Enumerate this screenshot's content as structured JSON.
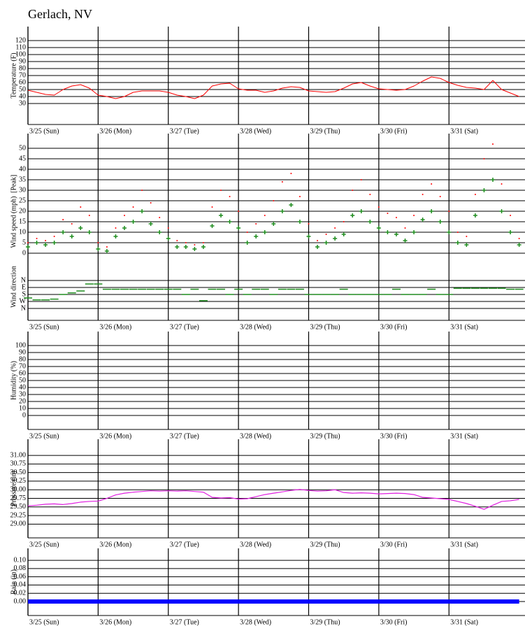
{
  "title": "Gerlach, NV",
  "chart_data": [
    {
      "type": "line",
      "ylabel": "Temperature (F)",
      "x": [
        0,
        3,
        6,
        9,
        12,
        15,
        18,
        21,
        24,
        27,
        30,
        33,
        36,
        39,
        42,
        45,
        48,
        51,
        54,
        57,
        60,
        63,
        66,
        69,
        72,
        75,
        78,
        81,
        84,
        87,
        90,
        93,
        96,
        99,
        102,
        105,
        108,
        111,
        114,
        117,
        120,
        123,
        126,
        129,
        132,
        135,
        138,
        141,
        144,
        147,
        150,
        153,
        156,
        159,
        162,
        165,
        168
      ],
      "xlim": [
        0,
        170
      ],
      "xticks": [
        {
          "value": 0,
          "label": "3/25 (Sun)"
        },
        {
          "value": 24,
          "label": "3/26 (Mon)"
        },
        {
          "value": 48,
          "label": "3/27 (Tue)"
        },
        {
          "value": 72,
          "label": "3/28 (Wed)"
        },
        {
          "value": 96,
          "label": "3/29 (Thu)"
        },
        {
          "value": 120,
          "label": "3/30 (Fri)"
        },
        {
          "value": 144,
          "label": "3/31 (Sat)"
        }
      ],
      "ylim": [
        0,
        140
      ],
      "yticks": [
        30,
        40,
        50,
        60,
        70,
        80,
        90,
        100,
        110,
        120
      ],
      "grid": true,
      "series": [
        {
          "color": "#ff0000",
          "marker": "none",
          "linewidth": 1,
          "values": [
            49,
            46,
            43,
            42,
            50,
            55,
            57,
            52,
            42,
            40,
            37,
            40,
            46,
            48,
            48,
            48,
            46,
            42,
            40,
            37,
            42,
            55,
            58,
            59,
            51,
            49,
            49,
            46,
            48,
            52,
            54,
            53,
            48,
            47,
            46,
            47,
            52,
            58,
            60,
            55,
            51,
            50,
            49,
            50,
            55,
            62,
            68,
            66,
            60,
            56,
            53,
            52,
            50,
            63,
            50,
            45,
            40
          ]
        }
      ]
    },
    {
      "type": "scatter",
      "ylabel": "Wind speed (mph)",
      "ylabel2": "[Peak]",
      "x": [
        0,
        3,
        6,
        9,
        12,
        15,
        18,
        21,
        24,
        27,
        30,
        33,
        36,
        39,
        42,
        45,
        48,
        51,
        54,
        57,
        60,
        63,
        66,
        69,
        72,
        75,
        78,
        81,
        84,
        87,
        90,
        93,
        96,
        99,
        102,
        105,
        108,
        111,
        114,
        117,
        120,
        123,
        126,
        129,
        132,
        135,
        138,
        141,
        144,
        147,
        150,
        153,
        156,
        159,
        162,
        165,
        168
      ],
      "xlim": [
        0,
        170
      ],
      "xticks": [
        0,
        24,
        48,
        72,
        96,
        120,
        144
      ],
      "ylim": [
        0,
        57
      ],
      "yticks": [
        0,
        5,
        10,
        15,
        20,
        25,
        30,
        35,
        40,
        45,
        50
      ],
      "grid": true,
      "series": [
        {
          "color": "#ff0000",
          "marker": "dot",
          "values": [
            5,
            7,
            6,
            8,
            16,
            14,
            22,
            18,
            5,
            3,
            12,
            18,
            22,
            30,
            24,
            17,
            12,
            6,
            5,
            4,
            5,
            22,
            30,
            27,
            20,
            10,
            14,
            18,
            25,
            34,
            38,
            27,
            14,
            6,
            9,
            12,
            15,
            30,
            35,
            28,
            22,
            19,
            17,
            12,
            18,
            28,
            33,
            27,
            20,
            10,
            8,
            28,
            45,
            52,
            33,
            18,
            7
          ]
        },
        {
          "color": "#1e8c1e",
          "marker": "cross",
          "values": [
            3,
            5,
            4,
            5,
            10,
            8,
            12,
            10,
            2,
            1,
            8,
            12,
            15,
            20,
            14,
            10,
            7,
            3,
            3,
            2,
            3,
            13,
            18,
            15,
            12,
            5,
            8,
            10,
            14,
            20,
            23,
            15,
            8,
            3,
            5,
            7,
            9,
            18,
            20,
            15,
            12,
            10,
            9,
            6,
            10,
            16,
            20,
            15,
            10,
            5,
            4,
            18,
            30,
            35,
            20,
            10,
            4
          ]
        }
      ]
    },
    {
      "type": "scatter",
      "ylabel": "Wind direction",
      "x": [
        0,
        3,
        6,
        9,
        12,
        15,
        18,
        21,
        24,
        27,
        30,
        33,
        36,
        39,
        42,
        45,
        48,
        51,
        54,
        57,
        60,
        63,
        66,
        69,
        72,
        75,
        78,
        81,
        84,
        87,
        90,
        93,
        96,
        99,
        102,
        105,
        108,
        111,
        114,
        117,
        120,
        123,
        126,
        129,
        132,
        135,
        138,
        141,
        144,
        147,
        150,
        153,
        156,
        159,
        162,
        165,
        168
      ],
      "xlim": [
        0,
        170
      ],
      "xticks": [
        {
          "value": 0,
          "label": "3/25 (Sun)"
        },
        {
          "value": 24,
          "label": "3/26 (Mon)"
        },
        {
          "value": 48,
          "label": "3/27 (Tue)"
        },
        {
          "value": 72,
          "label": "3/28 (Wed)"
        },
        {
          "value": 96,
          "label": "3/29 (Thu)"
        },
        {
          "value": 120,
          "label": "3/30 (Fri)"
        },
        {
          "value": 144,
          "label": "3/31 (Sat)"
        }
      ],
      "ylim": [
        513,
        -351
      ],
      "yticks": [
        {
          "value": 0,
          "label": "N"
        },
        {
          "value": 90,
          "label": "E"
        },
        {
          "value": 180,
          "label": "S"
        },
        {
          "value": 270,
          "label": "W"
        },
        {
          "value": 360,
          "label": "N"
        }
      ],
      "grid": true,
      "series": [
        {
          "color": "#1e8c1e",
          "marker": "dash",
          "values": [
            225,
            250,
            250,
            240,
            180,
            160,
            135,
            45,
            45,
            113,
            113,
            113,
            113,
            113,
            113,
            113,
            113,
            113,
            180,
            113,
            260,
            113,
            113,
            180,
            113,
            180,
            113,
            113,
            180,
            113,
            113,
            113,
            180,
            180,
            180,
            180,
            113,
            180,
            180,
            180,
            180,
            180,
            113,
            180,
            180,
            180,
            113,
            180,
            180,
            100,
            100,
            100,
            100,
            100,
            100,
            113,
            113
          ]
        }
      ]
    },
    {
      "type": "line",
      "ylabel": "Humidity (%)",
      "xlim": [
        0,
        170
      ],
      "xticks": [
        {
          "value": 0,
          "label": "3/25 (Sun)"
        },
        {
          "value": 24,
          "label": "3/26 (Mon)"
        },
        {
          "value": 48,
          "label": "3/27 (Tue)"
        },
        {
          "value": 72,
          "label": "3/28 (Wed)"
        },
        {
          "value": 96,
          "label": "3/29 (Thu)"
        },
        {
          "value": 120,
          "label": "3/30 (Fri)"
        },
        {
          "value": 144,
          "label": "3/31 (Sat)"
        }
      ],
      "ylim": [
        -20,
        120
      ],
      "yticks": [
        0,
        10,
        20,
        30,
        40,
        50,
        60,
        70,
        80,
        90,
        100
      ],
      "grid": true,
      "series": []
    },
    {
      "type": "line",
      "ylabel": "Pressure (in)",
      "x": [
        0,
        3,
        6,
        9,
        12,
        15,
        18,
        21,
        24,
        27,
        30,
        33,
        36,
        39,
        42,
        45,
        48,
        51,
        54,
        57,
        60,
        63,
        66,
        69,
        72,
        75,
        78,
        81,
        84,
        87,
        90,
        93,
        96,
        99,
        102,
        105,
        108,
        111,
        114,
        117,
        120,
        123,
        126,
        129,
        132,
        135,
        138,
        141,
        144,
        147,
        150,
        153,
        156,
        159,
        162,
        165,
        168
      ],
      "xlim": [
        0,
        170
      ],
      "xticks": [
        {
          "value": 0,
          "label": "3/25 (Sun)"
        },
        {
          "value": 24,
          "label": "3/26 (Mon)"
        },
        {
          "value": 48,
          "label": "3/27 (Tue)"
        },
        {
          "value": 72,
          "label": "3/28 (Wed)"
        },
        {
          "value": 96,
          "label": "3/29 (Thu)"
        },
        {
          "value": 120,
          "label": "3/30 (Fri)"
        },
        {
          "value": 144,
          "label": "3/31 (Sat)"
        }
      ],
      "ylim": [
        28.6,
        31.47
      ],
      "yticks": [
        {
          "value": 29,
          "label": "29.00"
        },
        {
          "value": 29.25,
          "label": "29.25"
        },
        {
          "value": 29.5,
          "label": "29.50"
        },
        {
          "value": 29.75,
          "label": "29.75"
        },
        {
          "value": 30,
          "label": "30.00"
        },
        {
          "value": 30.25,
          "label": "30.25"
        },
        {
          "value": 30.5,
          "label": "30.50"
        },
        {
          "value": 30.75,
          "label": "30.75"
        },
        {
          "value": 31,
          "label": "31.00"
        }
      ],
      "grid": true,
      "series": [
        {
          "color": "#e020e0",
          "marker": "none",
          "linewidth": 1.2,
          "values": [
            29.53,
            29.55,
            29.58,
            29.59,
            29.57,
            29.6,
            29.64,
            29.66,
            29.67,
            29.75,
            29.85,
            29.9,
            29.93,
            29.95,
            29.97,
            29.96,
            29.97,
            29.96,
            29.97,
            29.95,
            29.93,
            29.78,
            29.76,
            29.77,
            29.73,
            29.74,
            29.8,
            29.86,
            29.9,
            29.94,
            29.98,
            30.01,
            29.98,
            29.96,
            29.97,
            30.0,
            29.92,
            29.9,
            29.91,
            29.9,
            29.88,
            29.89,
            29.9,
            29.89,
            29.86,
            29.78,
            29.76,
            29.74,
            29.72,
            29.66,
            29.6,
            29.52,
            29.43,
            29.55,
            29.66,
            29.68,
            29.72
          ]
        }
      ]
    },
    {
      "type": "line",
      "ylabel": "Rain (in)",
      "x": [
        0,
        3,
        6,
        9,
        12,
        15,
        18,
        21,
        24,
        27,
        30,
        33,
        36,
        39,
        42,
        45,
        48,
        51,
        54,
        57,
        60,
        63,
        66,
        69,
        72,
        75,
        78,
        81,
        84,
        87,
        90,
        93,
        96,
        99,
        102,
        105,
        108,
        111,
        114,
        117,
        120,
        123,
        126,
        129,
        132,
        135,
        138,
        141,
        144,
        147,
        150,
        153,
        156,
        159,
        162,
        165,
        168
      ],
      "xlim": [
        0,
        170
      ],
      "xticks": [
        {
          "value": 0,
          "label": "3/25 (Sun)"
        },
        {
          "value": 24,
          "label": "3/26 (Mon)"
        },
        {
          "value": 48,
          "label": "3/27 (Tue)"
        },
        {
          "value": 72,
          "label": "3/28 (Wed)"
        },
        {
          "value": 96,
          "label": "3/29 (Thu)"
        },
        {
          "value": 120,
          "label": "3/30 (Fri)"
        },
        {
          "value": 144,
          "label": "3/31 (Sat)"
        }
      ],
      "ylim": [
        -0.034,
        0.129
      ],
      "yticks": [
        {
          "value": 0,
          "label": "0.00"
        },
        0.02,
        0.04,
        0.06,
        0.08,
        {
          "value": 0.1,
          "label": "0.10"
        }
      ],
      "grid": true,
      "series": [
        {
          "color": "#0000ff",
          "marker": "none",
          "linewidth": 6,
          "values": [
            0,
            0,
            0,
            0,
            0,
            0,
            0,
            0,
            0,
            0,
            0,
            0,
            0,
            0,
            0,
            0,
            0,
            0,
            0,
            0,
            0,
            0,
            0,
            0,
            0,
            0,
            0,
            0,
            0,
            0,
            0,
            0,
            0,
            0,
            0,
            0,
            0,
            0,
            0,
            0,
            0,
            0,
            0,
            0,
            0,
            0,
            0,
            0,
            0,
            0,
            0,
            0,
            0,
            0,
            0,
            0,
            0
          ]
        }
      ]
    }
  ]
}
